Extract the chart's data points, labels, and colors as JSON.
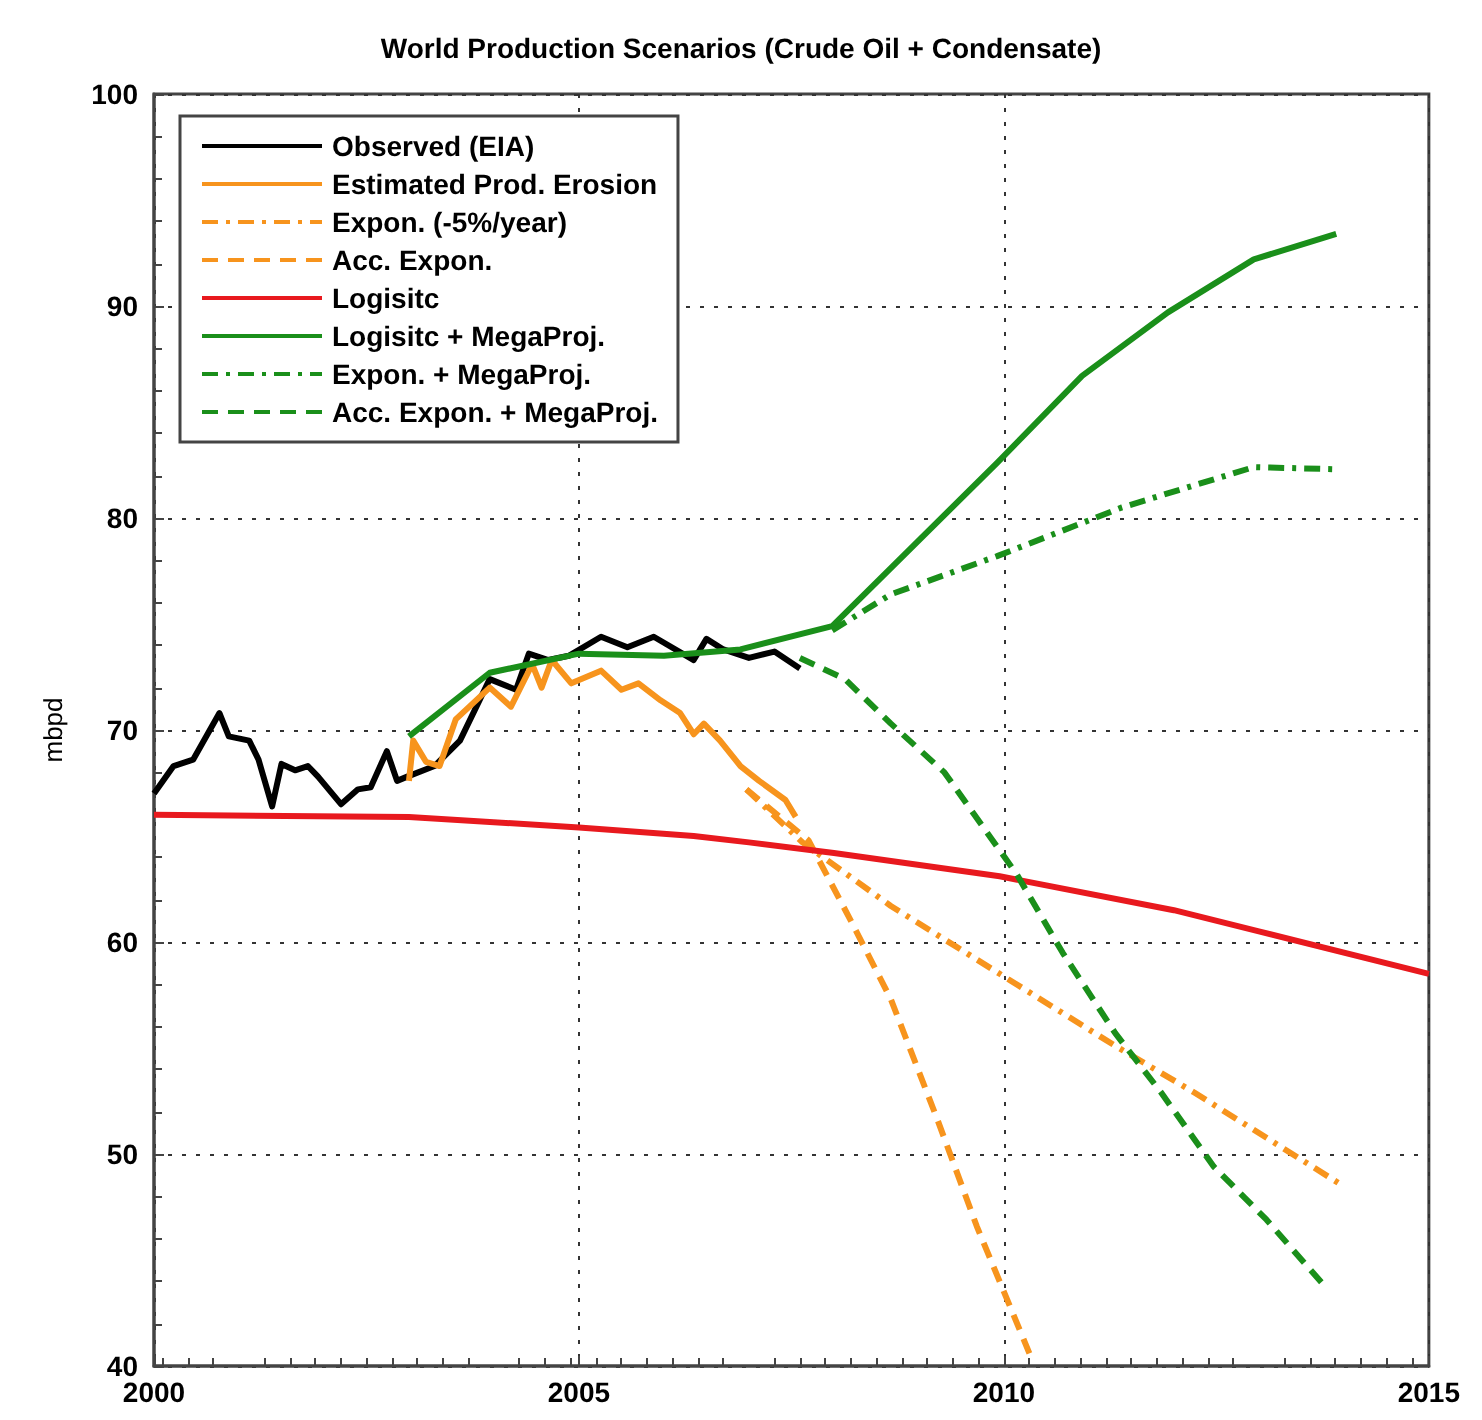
{
  "chart_data": {
    "type": "line",
    "title": "World Production Scenarios (Crude Oil + Condensate)",
    "ylabel": "mbpd",
    "xlim": [
      2000,
      2015
    ],
    "xticks": [
      2000,
      2005,
      2010,
      2015
    ],
    "ylim": [
      40,
      100
    ],
    "yticks": [
      40,
      50,
      60,
      70,
      80,
      90,
      100
    ],
    "grid": true,
    "legend": "top left",
    "marker": "none",
    "series": [
      {
        "name": "Observed (EIA)",
        "color": "#000000",
        "line_style": "solid",
        "x": [
          2000.0,
          2000.23,
          2000.46,
          2000.77,
          2000.88,
          2001.12,
          2001.23,
          2001.39,
          2001.5,
          2001.66,
          2001.81,
          2001.93,
          2002.2,
          2002.4,
          2002.55,
          2002.74,
          2002.86,
          2002.98,
          2003.3,
          2003.6,
          2003.95,
          2004.26,
          2004.41,
          2004.64,
          2004.88,
          2005.26,
          2005.57,
          2005.88,
          2006.35,
          2006.5,
          2006.7,
          2007.0,
          2007.3,
          2007.6
        ],
        "values": [
          67.0,
          68.3,
          68.6,
          70.8,
          69.7,
          69.5,
          68.6,
          66.4,
          68.4,
          68.1,
          68.3,
          67.8,
          66.5,
          67.2,
          67.3,
          69.0,
          67.6,
          67.8,
          68.3,
          69.5,
          72.4,
          71.9,
          73.6,
          73.3,
          73.5,
          74.4,
          73.9,
          74.4,
          73.3,
          74.3,
          73.8,
          73.4,
          73.7,
          72.9
        ]
      },
      {
        "name": "Estimated Prod. Erosion",
        "color": "#f7941d",
        "line_style": "solid",
        "x": [
          2003.0,
          2003.05,
          2003.2,
          2003.36,
          2003.55,
          2003.95,
          2004.2,
          2004.45,
          2004.56,
          2004.68,
          2004.91,
          2005.26,
          2005.5,
          2005.7,
          2005.96,
          2006.19,
          2006.35,
          2006.47,
          2006.66,
          2006.9,
          2007.12,
          2007.43,
          2007.55
        ],
        "values": [
          67.6,
          69.5,
          68.5,
          68.3,
          70.5,
          72.0,
          71.1,
          73.1,
          72.0,
          73.3,
          72.2,
          72.8,
          71.9,
          72.2,
          71.4,
          70.8,
          69.8,
          70.3,
          69.5,
          68.3,
          67.6,
          66.7,
          65.9
        ]
      },
      {
        "name": "Expon. (-5%/year)",
        "color": "#f7941d",
        "line_style": "dashdot",
        "x": [
          2006.97,
          2007.63,
          2008.67,
          2009.95,
          2011.31,
          2012.24,
          2013.95
        ],
        "values": [
          67.2,
          64.7,
          61.7,
          58.5,
          55.1,
          52.9,
          48.6
        ]
      },
      {
        "name": "Acc. Expon.",
        "color": "#f7941d",
        "line_style": "dashed",
        "x": [
          2006.97,
          2007.7,
          2008.2,
          2008.67,
          2009.22,
          2009.68,
          2010.3
        ],
        "values": [
          67.2,
          64.8,
          61.0,
          57.3,
          51.6,
          46.6,
          40.6
        ]
      },
      {
        "name": "Logisitc",
        "color": "#e8191e",
        "line_style": "solid",
        "x": [
          2000,
          2003,
          2005,
          2006.35,
          2007,
          2008,
          2009.95,
          2012,
          2013,
          2015
        ],
        "values": [
          66.0,
          65.9,
          65.4,
          65.0,
          64.7,
          64.2,
          63.1,
          61.5,
          60.5,
          58.5
        ]
      },
      {
        "name": "Logisitc + MegaProj.",
        "color": "#1a8f1a",
        "line_style": "solid",
        "x": [
          2003.0,
          2003.95,
          2005.0,
          2006.0,
          2006.9,
          2007.98,
          2009.92,
          2010.92,
          2011.93,
          2012.94,
          2013.91
        ],
        "values": [
          69.7,
          72.7,
          73.6,
          73.5,
          73.8,
          74.9,
          82.6,
          86.7,
          89.7,
          92.2,
          93.4
        ]
      },
      {
        "name": "Expon. + MegaProj.",
        "color": "#1a8f1a",
        "line_style": "dashdot",
        "x": [
          2007.98,
          2008.67,
          2009.92,
          2011.39,
          2012.94,
          2013.91
        ],
        "values": [
          74.7,
          76.4,
          78.2,
          80.5,
          82.4,
          82.3
        ]
      },
      {
        "name": "Acc. Expon. + MegaProj.",
        "color": "#1a8f1a",
        "line_style": "dashed",
        "x": [
          2007.6,
          2008.13,
          2008.67,
          2009.3,
          2009.76,
          2010.15,
          2010.69,
          2011.31,
          2011.85,
          2012.47,
          2013.09,
          2013.79
        ],
        "values": [
          73.4,
          72.4,
          70.3,
          68.0,
          65.4,
          63.2,
          59.5,
          55.7,
          52.9,
          49.4,
          46.9,
          43.7
        ]
      }
    ]
  }
}
